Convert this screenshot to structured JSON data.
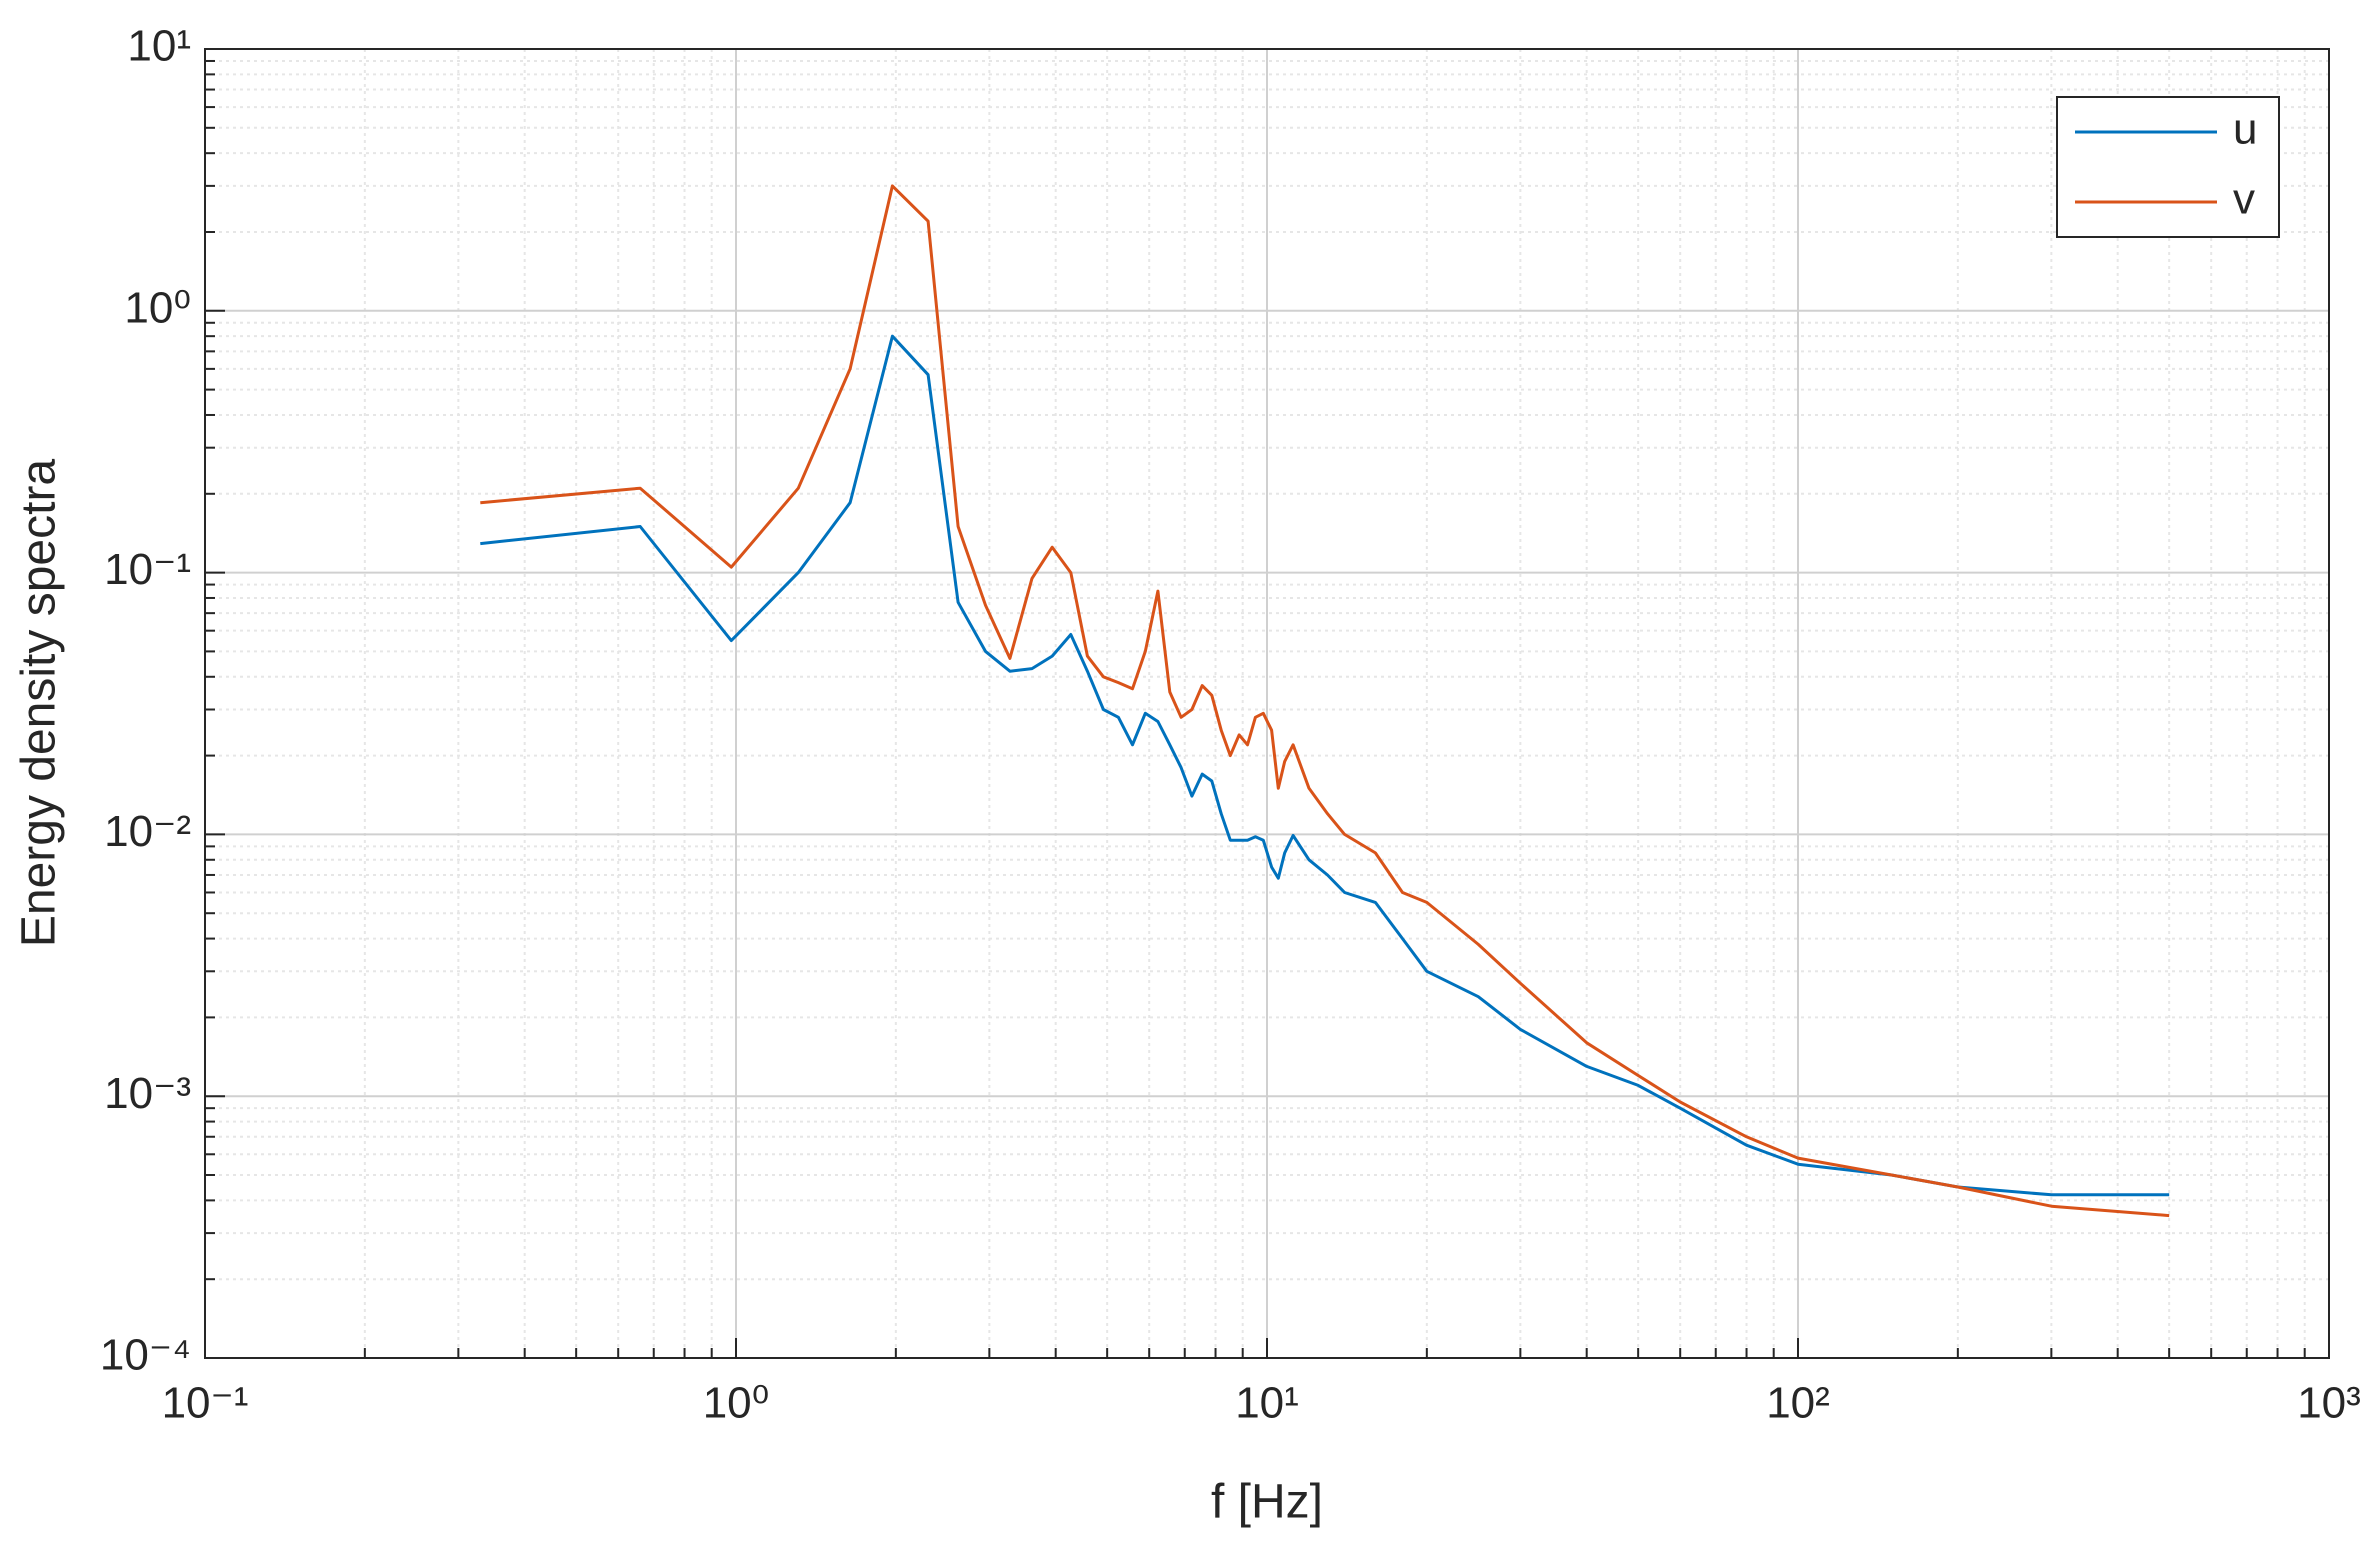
{
  "chart_data": {
    "type": "line",
    "x_label": "f [Hz]",
    "y_label": "Energy density spectra",
    "log_x": true,
    "log_y": true,
    "grid": true,
    "minor_grid": true,
    "legend": "top-right",
    "xlim": [
      0.1,
      1000
    ],
    "ylim": [
      0.0001,
      10
    ],
    "xticks": [
      {
        "value": 0.1,
        "label": "10⁻¹"
      },
      {
        "value": 1,
        "label": "10⁰"
      },
      {
        "value": 10,
        "label": "10¹"
      },
      {
        "value": 100,
        "label": "10²"
      },
      {
        "value": 1000,
        "label": "10³"
      }
    ],
    "yticks": [
      {
        "value": 0.0001,
        "label": "10⁻⁴"
      },
      {
        "value": 0.001,
        "label": "10⁻³"
      },
      {
        "value": 0.01,
        "label": "10⁻²"
      },
      {
        "value": 0.1,
        "label": "10⁻¹"
      },
      {
        "value": 1,
        "label": "10⁰"
      },
      {
        "value": 10,
        "label": "10¹"
      }
    ],
    "x": [
      0.33,
      0.66,
      0.98,
      1.31,
      1.64,
      1.97,
      2.3,
      2.62,
      2.95,
      3.28,
      3.61,
      3.94,
      4.27,
      4.59,
      4.92,
      5.25,
      5.58,
      5.9,
      6.23,
      6.56,
      6.89,
      7.22,
      7.55,
      7.87,
      8.2,
      8.53,
      8.86,
      9.19,
      9.51,
      9.84,
      10.2,
      10.5,
      10.8,
      11.2,
      12,
      13,
      14,
      16,
      18,
      20,
      25,
      30,
      40,
      50,
      60,
      80,
      100,
      150,
      200,
      300,
      500
    ],
    "series": [
      {
        "name": "u",
        "color": "#0072bd",
        "values": [
          0.129,
          0.15,
          0.055,
          0.1,
          0.185,
          0.8,
          0.57,
          0.077,
          0.05,
          0.042,
          0.043,
          0.048,
          0.058,
          0.042,
          0.03,
          0.028,
          0.022,
          0.029,
          0.027,
          0.022,
          0.018,
          0.014,
          0.017,
          0.016,
          0.012,
          0.0095,
          0.0095,
          0.0095,
          0.0098,
          0.0095,
          0.0075,
          0.0068,
          0.0085,
          0.0099,
          0.008,
          0.007,
          0.006,
          0.0055,
          0.004,
          0.003,
          0.0024,
          0.0018,
          0.0013,
          0.0011,
          0.0009,
          0.00065,
          0.00055,
          0.0005,
          0.00045,
          0.00042,
          0.00042
        ]
      },
      {
        "name": "v",
        "color": "#d95319",
        "values": [
          0.185,
          0.21,
          0.105,
          0.21,
          0.6,
          3.0,
          2.2,
          0.15,
          0.075,
          0.047,
          0.095,
          0.125,
          0.1,
          0.048,
          0.04,
          0.038,
          0.036,
          0.05,
          0.085,
          0.035,
          0.028,
          0.03,
          0.037,
          0.034,
          0.025,
          0.02,
          0.024,
          0.022,
          0.028,
          0.029,
          0.025,
          0.015,
          0.019,
          0.022,
          0.015,
          0.012,
          0.01,
          0.0085,
          0.006,
          0.0055,
          0.0038,
          0.0027,
          0.0016,
          0.0012,
          0.00095,
          0.0007,
          0.00058,
          0.0005,
          0.00045,
          0.00038,
          0.00035
        ]
      }
    ]
  }
}
